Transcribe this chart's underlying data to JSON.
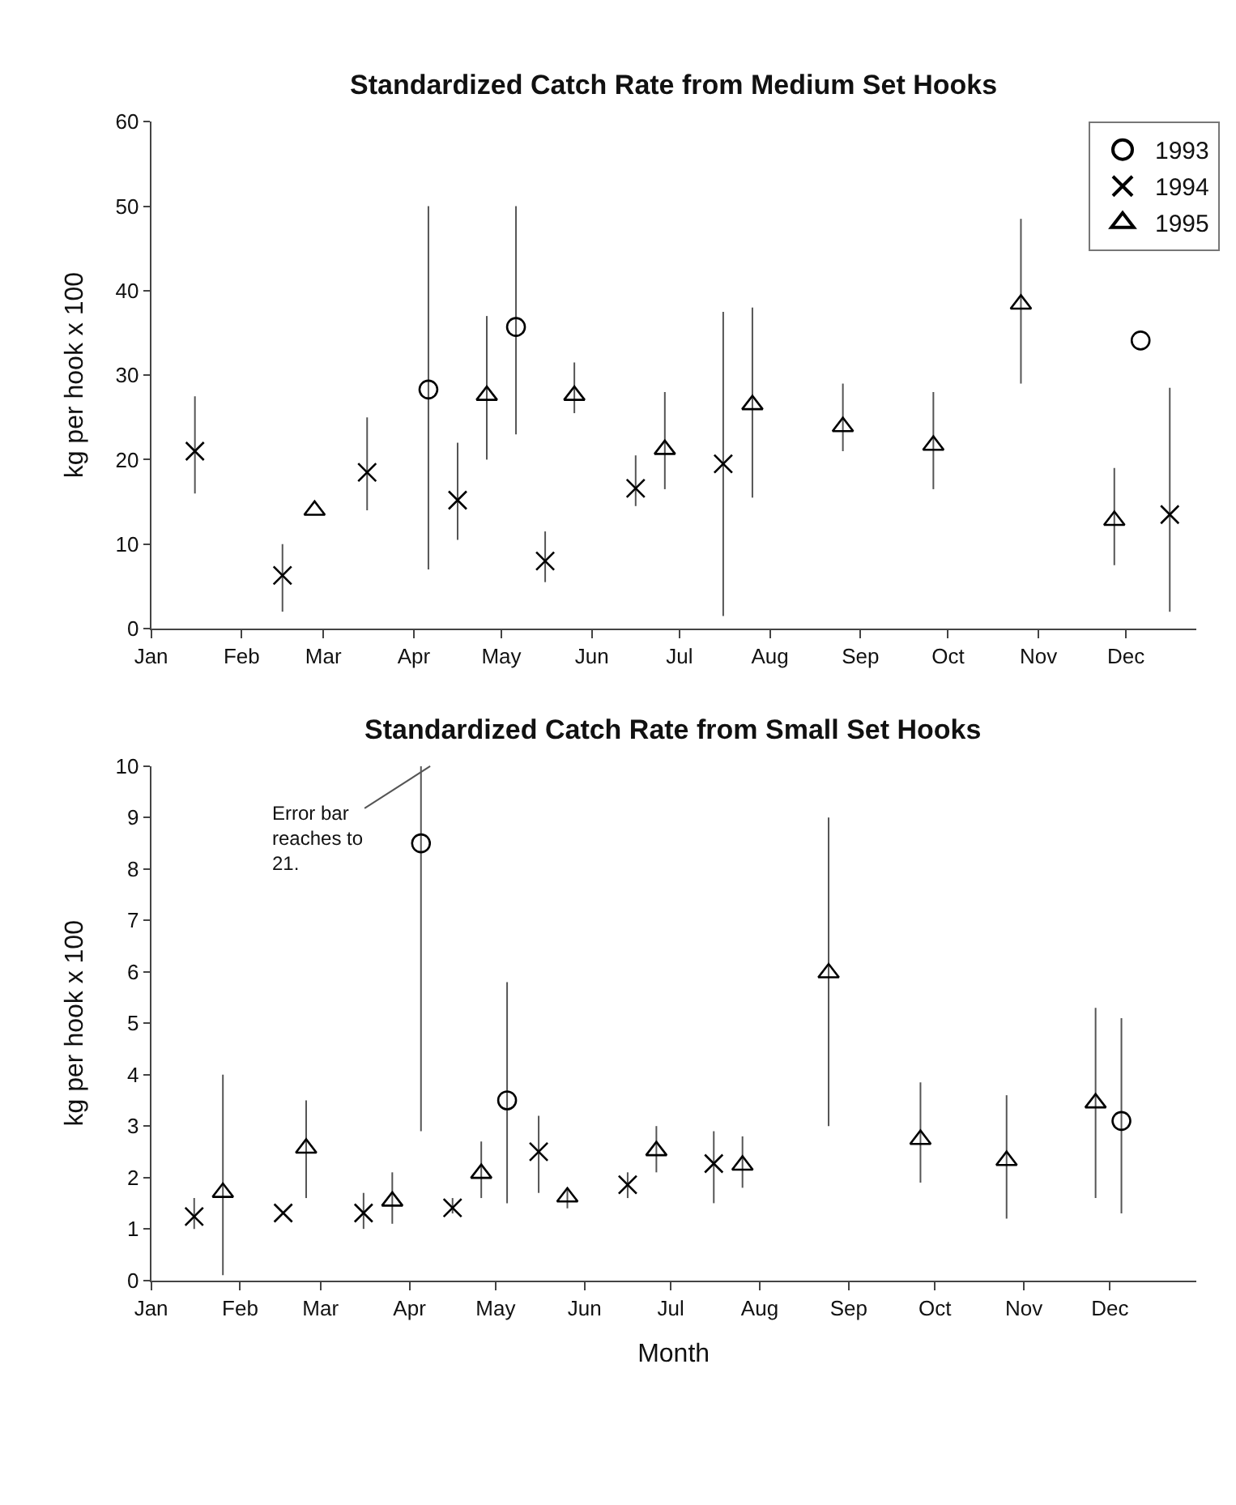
{
  "chart_data": [
    {
      "type": "scatter",
      "title": "Standardized Catch Rate from Medium Set Hooks",
      "ylabel": "kg per hook x 100",
      "xlim": [
        "--01-01",
        "--12-25"
      ],
      "xticks": [
        {
          "value": "--01-01",
          "label": "Jan"
        },
        {
          "value": "--02-01",
          "label": "Feb"
        },
        {
          "value": "--03-01",
          "label": "Mar"
        },
        {
          "value": "--04-01",
          "label": "Apr"
        },
        {
          "value": "--05-01",
          "label": "May"
        },
        {
          "value": "--06-01",
          "label": "Jun"
        },
        {
          "value": "--07-01",
          "label": "Jul"
        },
        {
          "value": "--08-01",
          "label": "Aug"
        },
        {
          "value": "--09-01",
          "label": "Sep"
        },
        {
          "value": "--10-01",
          "label": "Oct"
        },
        {
          "value": "--11-01",
          "label": "Nov"
        },
        {
          "value": "--12-01",
          "label": "Dec"
        }
      ],
      "ylim": [
        0,
        60
      ],
      "yticks": [
        0,
        10,
        20,
        30,
        40,
        50,
        60
      ],
      "legend": "top right",
      "series": [
        {
          "name": "1993",
          "color": "#000000",
          "marker": "circle",
          "x": [
            "--04-06",
            "--05-06",
            "--12-06"
          ],
          "values": [
            28.3,
            35.7,
            34.1
          ],
          "errors": [
            [
              7,
              50
            ],
            [
              23,
              50
            ],
            null
          ]
        },
        {
          "name": "1994",
          "color": "#000000",
          "marker": "cross",
          "x": [
            "--01-16",
            "--02-15",
            "--03-16",
            "--04-16",
            "--05-16",
            "--06-16",
            "--07-16",
            "--12-16"
          ],
          "values": [
            21,
            6.3,
            18.5,
            15.2,
            8,
            16.6,
            19.5,
            13.5
          ],
          "errors": [
            [
              16,
              27.5
            ],
            [
              2,
              10
            ],
            [
              14,
              25
            ],
            [
              10.5,
              22
            ],
            [
              5.5,
              11.5
            ],
            [
              14.5,
              20.5
            ],
            [
              1.5,
              37.5
            ],
            [
              2,
              28.5
            ]
          ]
        },
        {
          "name": "1995",
          "color": "#000000",
          "marker": "triangle",
          "x": [
            "--02-26",
            "--04-26",
            "--05-26",
            "--06-26",
            "--07-26",
            "--08-26",
            "--09-26",
            "--10-26",
            "--11-27"
          ],
          "values": [
            14,
            27.6,
            27.6,
            21.2,
            26.5,
            23.9,
            21.7,
            38.4,
            12.8
          ],
          "errors": [
            null,
            [
              20,
              37
            ],
            [
              25.5,
              31.5
            ],
            [
              16.5,
              28
            ],
            [
              15.5,
              38
            ],
            [
              21,
              29
            ],
            [
              16.5,
              28
            ],
            [
              29,
              48.5
            ],
            [
              7.5,
              19
            ]
          ]
        }
      ]
    },
    {
      "type": "scatter",
      "title": "Standardized Catch Rate from Small Set Hooks",
      "ylabel": "kg per hook x 100",
      "xlabel": "Month",
      "xlim": [
        "--01-01",
        "--12-31"
      ],
      "xticks": [
        {
          "value": "--01-01",
          "label": "Jan"
        },
        {
          "value": "--02-01",
          "label": "Feb"
        },
        {
          "value": "--03-01",
          "label": "Mar"
        },
        {
          "value": "--04-01",
          "label": "Apr"
        },
        {
          "value": "--05-01",
          "label": "May"
        },
        {
          "value": "--06-01",
          "label": "Jun"
        },
        {
          "value": "--07-01",
          "label": "Jul"
        },
        {
          "value": "--08-01",
          "label": "Aug"
        },
        {
          "value": "--09-01",
          "label": "Sep"
        },
        {
          "value": "--10-01",
          "label": "Oct"
        },
        {
          "value": "--11-01",
          "label": "Nov"
        },
        {
          "value": "--12-01",
          "label": "Dec"
        }
      ],
      "ylim": [
        0,
        10
      ],
      "yticks": [
        0,
        1,
        2,
        3,
        4,
        5,
        6,
        7,
        8,
        9,
        10
      ],
      "annotations": [
        "Error bar\nreaches to\n21."
      ],
      "series": [
        {
          "color": "#000000",
          "marker": "circle",
          "x": [
            "--04-05",
            "--05-05",
            "--12-05"
          ],
          "values": [
            8.5,
            3.5,
            3.1
          ],
          "errors": [
            [
              2.9,
              10
            ],
            [
              1.5,
              5.8
            ],
            [
              1.3,
              5.1
            ]
          ]
        },
        {
          "color": "#000000",
          "marker": "cross",
          "x": [
            "--01-16",
            "--02-16",
            "--03-16",
            "--04-16",
            "--05-16",
            "--06-16",
            "--07-16"
          ],
          "values": [
            1.24,
            1.31,
            1.31,
            1.41,
            2.5,
            1.86,
            2.27
          ],
          "errors": [
            [
              1,
              1.6
            ],
            null,
            [
              1,
              1.7
            ],
            [
              1.3,
              1.6
            ],
            [
              1.7,
              3.2
            ],
            [
              1.6,
              2.1
            ],
            [
              1.5,
              2.9
            ]
          ]
        },
        {
          "color": "#000000",
          "marker": "triangle",
          "x": [
            "--01-26",
            "--02-24",
            "--03-26",
            "--04-26",
            "--05-26",
            "--06-26",
            "--07-26",
            "--08-25",
            "--09-26",
            "--10-26",
            "--11-26"
          ],
          "values": [
            1.71,
            2.57,
            1.54,
            2.08,
            1.62,
            2.52,
            2.24,
            5.98,
            2.74,
            2.33,
            3.45
          ],
          "errors": [
            [
              0.1,
              4
            ],
            [
              1.6,
              3.5
            ],
            [
              1.1,
              2.1
            ],
            [
              1.6,
              2.7
            ],
            [
              1.4,
              1.8
            ],
            [
              2.1,
              3
            ],
            [
              1.8,
              2.8
            ],
            [
              3,
              9
            ],
            [
              1.9,
              3.85
            ],
            [
              1.2,
              3.6
            ],
            [
              1.6,
              5.3
            ]
          ]
        }
      ]
    }
  ]
}
